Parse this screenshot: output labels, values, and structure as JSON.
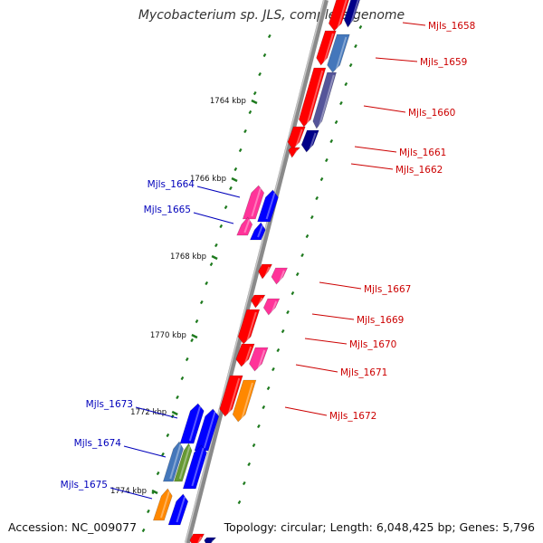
{
  "title": "Mycobacterium sp. JLS, complete genome",
  "footer": {
    "accession": "Accession: NC_009077",
    "topology": "Topology: circular; Length: 6,048,425 bp; Genes: 5,796"
  },
  "colors": {
    "backbone": "#888888",
    "tick": "#1e7a1e",
    "right_label": "#cc0000",
    "left_label": "#0000bb",
    "red": "#ff0000",
    "blue": "#0000ff",
    "navy": "#000088",
    "magenta": "#ff3399",
    "orange": "#ff8800",
    "steel": "#4477bb",
    "olive": "#669933",
    "slate": "#555599"
  },
  "kbp_labels": [
    "1764 kbp",
    "1766 kbp",
    "1768 kbp",
    "1770 kbp",
    "1772 kbp",
    "1774 kbp"
  ],
  "gene_labels_right": [
    "Mjls_1658",
    "Mjls_1659",
    "Mjls_1660",
    "Mjls_1661",
    "Mjls_1662",
    "Mjls_1667",
    "Mjls_1669",
    "Mjls_1670",
    "Mjls_1671",
    "Mjls_1672"
  ],
  "gene_labels_left": [
    "Mjls_1664",
    "Mjls_1665",
    "Mjls_1673",
    "Mjls_1674",
    "Mjls_1675"
  ]
}
